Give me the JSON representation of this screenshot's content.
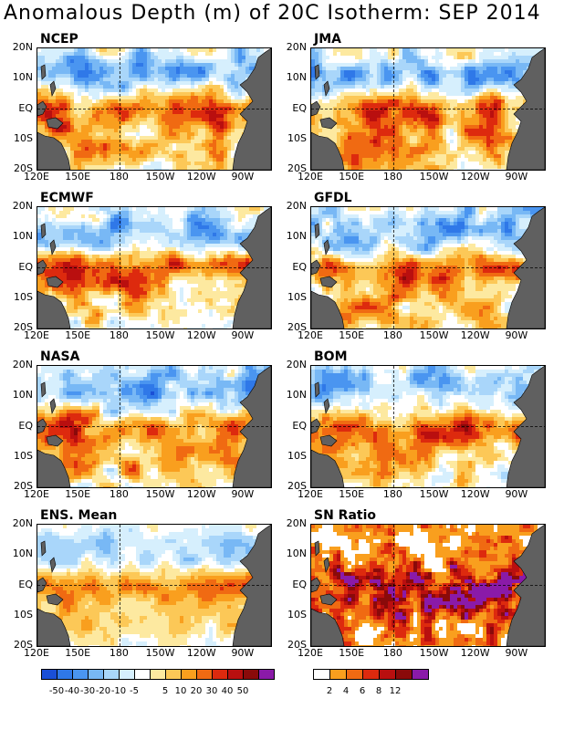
{
  "title": "Anomalous Depth (m) of 20C Isotherm: SEP 2014",
  "panels": [
    {
      "name": "NCEP"
    },
    {
      "name": "JMA"
    },
    {
      "name": "ECMWF"
    },
    {
      "name": "GFDL"
    },
    {
      "name": "NASA"
    },
    {
      "name": "BOM"
    },
    {
      "name": "ENS. Mean"
    },
    {
      "name": "SN Ratio"
    }
  ],
  "lat_labels": [
    "20N",
    "10N",
    "EQ",
    "10S",
    "20S"
  ],
  "lon_labels": [
    "120E",
    "150E",
    "180",
    "150W",
    "120W",
    "90W"
  ],
  "anomaly_scale": {
    "colors": [
      "#1a4fd6",
      "#2f78e8",
      "#4a95f0",
      "#78b8f5",
      "#a9d6fa",
      "#d6effd",
      "#ffffff",
      "#fde9a0",
      "#fcc857",
      "#f99f1e",
      "#f06a12",
      "#dd2a0e",
      "#b90f0f",
      "#8a0a0a",
      "#8a1aa8"
    ],
    "labels": [
      "-50",
      "-40",
      "-30",
      "-20",
      "-10",
      "-5",
      "5",
      "10",
      "20",
      "30",
      "40",
      "50"
    ]
  },
  "sn_scale": {
    "colors": [
      "#ffffff",
      "#f99f1e",
      "#f06a12",
      "#dd2a0e",
      "#b90f0f",
      "#8a0a0a",
      "#8a1aa8"
    ],
    "labels": [
      "2",
      "4",
      "6",
      "8",
      "12"
    ]
  },
  "land_color": "#606060"
}
